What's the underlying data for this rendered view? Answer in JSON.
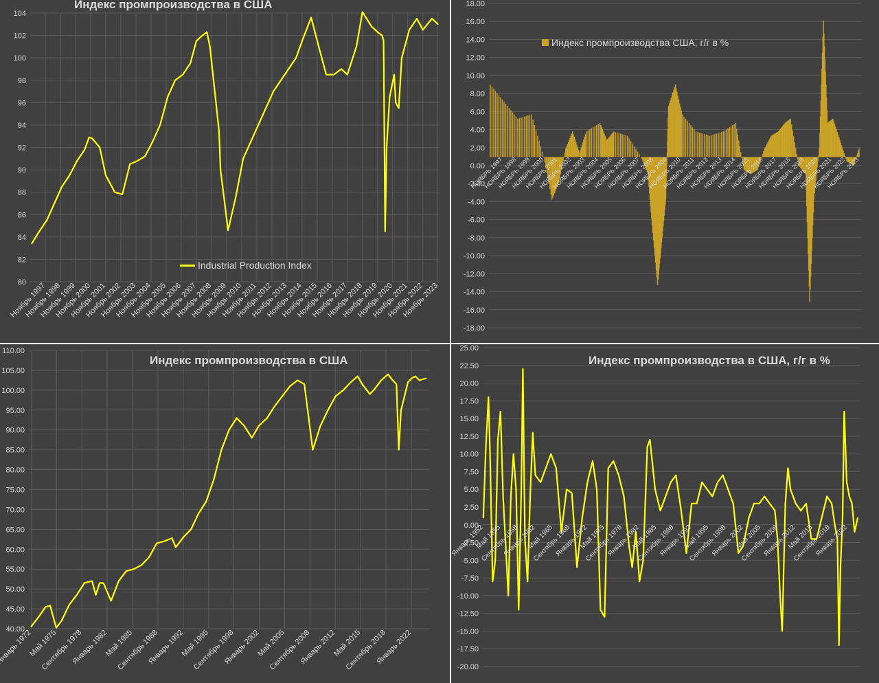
{
  "chart_data": [
    {
      "type": "line",
      "title": "Индекс промпроизводства в США",
      "series": [
        {
          "name": "Industrial Production Index",
          "x": [
            1997.0,
            1997.5,
            1998.0,
            1998.5,
            1999.0,
            1999.5,
            2000.0,
            2000.5,
            2000.8,
            2001.0,
            2001.5,
            2001.9,
            2002.5,
            2003.0,
            2003.5,
            2004.0,
            2004.5,
            2005.0,
            2005.5,
            2005.7,
            2006.0,
            2006.5,
            2007.0,
            2007.5,
            2007.9,
            2008.3,
            2008.6,
            2008.8,
            2009.4,
            2009.5,
            2010.0,
            2010.5,
            2011.0,
            2011.5,
            2012.0,
            2012.5,
            2013.0,
            2013.5,
            2014.0,
            2014.5,
            2014.9,
            2015.5,
            2016.0,
            2016.5,
            2017.0,
            2017.5,
            2017.9,
            2018.5,
            2018.9,
            2019.5,
            2019.9,
            2020.2,
            2020.3,
            2020.4,
            2020.5,
            2020.7,
            2021.0,
            2021.1,
            2021.3,
            2021.5,
            2022.0,
            2022.5,
            2022.9,
            2023.5,
            2023.9
          ],
          "values": [
            83.4,
            84.5,
            85.5,
            87,
            88.5,
            89.5,
            90.8,
            91.8,
            92.9,
            92.8,
            92,
            89.5,
            88,
            87.8,
            90.5,
            90.8,
            91.2,
            92.5,
            94,
            95,
            96.5,
            98,
            98.5,
            99.5,
            101.5,
            102,
            102.3,
            101,
            93.5,
            90,
            84.6,
            87.5,
            91,
            92.5,
            94,
            95.5,
            97,
            98,
            99,
            100,
            101.5,
            103.6,
            101,
            98.5,
            98.5,
            99,
            98.5,
            101,
            104.1,
            102.8,
            102.3,
            102,
            101.5,
            84.5,
            92,
            96.5,
            98.5,
            96,
            95.5,
            100,
            102.5,
            103.5,
            102.5,
            103.5,
            103
          ]
        }
      ],
      "ylim": [
        80,
        104
      ],
      "yticks": [
        "104",
        "102",
        "100",
        "98",
        "96",
        "94",
        "92",
        "90",
        "88",
        "86",
        "84",
        "82",
        "80"
      ],
      "xtick_labels": [
        "Ноябрь 1997",
        "Ноябрь 1998",
        "Ноябрь 1999",
        "Ноябрь 2000",
        "Ноябрь 2001",
        "Ноябрь 2002",
        "Ноябрь 2003",
        "Ноябрь 2004",
        "Ноябрь 2005",
        "Ноябрь 2006",
        "Ноябрь 2007",
        "Ноябрь 2008",
        "Ноябрь 2009",
        "Ноябрь 2010",
        "Ноябрь 2011",
        "Ноябрь 2012",
        "Ноябрь 2013",
        "Ноябрь 2014",
        "Ноябрь 2015",
        "Ноябрь 2016",
        "Ноябрь 2017",
        "Ноябрь 2018",
        "Ноябрь 2019",
        "Ноябрь 2020",
        "Ноябрь 2021",
        "Ноябрь 2022",
        "Ноябрь 2023"
      ],
      "legend_position": "bottom-center",
      "grid": true,
      "color": "#ffff00"
    },
    {
      "type": "bar",
      "title": "",
      "series": [
        {
          "name": "Индекс промпроизводства США, г/г в %",
          "x": [
            1997.0,
            1998.0,
            1999.0,
            2000.0,
            2000.9,
            2001.5,
            2002.0,
            2002.5,
            2003.0,
            2003.5,
            2004.0,
            2005.0,
            2005.5,
            2006.0,
            2007.0,
            2008.0,
            2008.5,
            2008.8,
            2009.2,
            2009.5,
            2009.8,
            2010.0,
            2010.5,
            2011.0,
            2012.0,
            2013.0,
            2014.0,
            2014.9,
            2015.5,
            2016.0,
            2016.5,
            2017.0,
            2017.5,
            2018.0,
            2018.5,
            2018.9,
            2019.5,
            2020.0,
            2020.3,
            2020.6,
            2021.0,
            2021.3,
            2021.6,
            2022.0,
            2022.5,
            2023.0,
            2023.5,
            2023.9
          ],
          "values": [
            8.5,
            6.5,
            4.5,
            5,
            0,
            -5,
            -3,
            1,
            3,
            0.5,
            3,
            4,
            2,
            3,
            2.5,
            0,
            -2,
            -8,
            -15,
            -10,
            -5,
            6,
            8.5,
            5,
            3,
            2.5,
            3,
            4,
            -1.5,
            -2,
            -1.5,
            1,
            2.5,
            3,
            4,
            4.5,
            -1,
            -2,
            -17,
            -5,
            1,
            16,
            4,
            4.5,
            2,
            -0.5,
            -1,
            1
          ]
        }
      ],
      "ylim": [
        -20,
        18
      ],
      "yticks": [
        "18.00",
        "16.00",
        "14.00",
        "12.00",
        "10.00",
        "8.00",
        "6.00",
        "4.00",
        "2.00",
        "0.00",
        "-2.00",
        "-4.00",
        "-6.00",
        "-8.00",
        "-10.00",
        "-12.00",
        "-14.00",
        "-16.00",
        "-18.00"
      ],
      "xtick_labels": [
        "НОЯБРЬ 1997",
        "НОЯБРЬ 1998",
        "НОЯБРЬ 1999",
        "НОЯБРЬ 2000",
        "НОЯБРЬ 2001",
        "НОЯБРЬ 2002",
        "НОЯБРЬ 2003",
        "НОЯБРЬ 2004",
        "НОЯБРЬ 2005",
        "НОЯБРЬ 2006",
        "НОЯБРЬ 2007",
        "НОЯБРЬ 2008",
        "НОЯБРЬ 2009",
        "НОЯБРЬ 2010",
        "НОЯБРЬ 2011",
        "НОЯБРЬ 2012",
        "НОЯБРЬ 2013",
        "НОЯБРЬ 2014",
        "НОЯБРЬ 2015",
        "НОЯБРЬ 2016",
        "НОЯБРЬ 2017",
        "НОЯБРЬ 2018",
        "НОЯБРЬ 2019",
        "НОЯБРЬ 2020",
        "НОЯБРЬ 2021",
        "НОЯБРЬ 2022",
        "НОЯБРЬ 2023"
      ],
      "legend_position": "top-left",
      "grid": true,
      "color": "#c9a227"
    },
    {
      "type": "line",
      "title": "Индекс промпроизводства в США",
      "series": [
        {
          "name": "",
          "x": [
            1972.0,
            1973.0,
            1973.9,
            1974.5,
            1975.3,
            1976.0,
            1977.0,
            1978.0,
            1979.0,
            1980.0,
            1980.5,
            1981.0,
            1981.5,
            1982.5,
            1983.5,
            1984.5,
            1985.5,
            1986.5,
            1987.5,
            1988.5,
            1989.5,
            1990.5,
            1991.0,
            1992.0,
            1993.0,
            1994.0,
            1995.0,
            1996.0,
            1997.0,
            1998.0,
            1999.0,
            2000.0,
            2001.0,
            2001.9,
            2003.0,
            2004.0,
            2005.0,
            2006.0,
            2007.0,
            2007.9,
            2009.0,
            2009.5,
            2010.0,
            2011.0,
            2012.0,
            2013.0,
            2014.0,
            2014.9,
            2015.5,
            2016.5,
            2017.0,
            2018.0,
            2018.9,
            2019.5,
            2020.0,
            2020.3,
            2020.6,
            2021.0,
            2021.5,
            2022.0,
            2022.5,
            2023.0,
            2023.9
          ],
          "values": [
            40.5,
            43,
            45.5,
            45.8,
            40.2,
            42,
            46,
            48.5,
            51.5,
            52,
            48.5,
            51.5,
            51.5,
            47,
            52,
            54.5,
            55,
            56,
            58,
            61.5,
            62,
            62.8,
            60.5,
            63,
            65,
            69,
            72,
            77.5,
            85,
            90,
            93,
            91,
            88,
            91,
            93,
            96,
            98.5,
            101,
            102.5,
            101.5,
            85,
            88,
            91,
            95,
            98.5,
            100,
            102,
            103.5,
            101.5,
            99,
            100,
            102.5,
            104,
            102.5,
            101.5,
            85,
            95,
            98,
            102,
            103,
            103.5,
            102.5,
            103
          ]
        }
      ],
      "ylim": [
        40,
        110
      ],
      "yticks": [
        "110.00",
        "105.00",
        "100.00",
        "95.00",
        "90.00",
        "85.00",
        "80.00",
        "75.00",
        "70.00",
        "65.00",
        "60.00",
        "55.00",
        "50.00",
        "45.00",
        "40.00"
      ],
      "xtick_labels": [
        "Январь 1972",
        "Май 1975",
        "Сентябрь 1978",
        "Январь 1982",
        "Май 1985",
        "Сентябрь 1988",
        "Январь 1992",
        "Май 1995",
        "Сентябрь 1998",
        "Январь 2002",
        "Май 2005",
        "Сентябрь 2008",
        "Январь 2012",
        "Май 2015",
        "Сентябрь 2018",
        "Январь 2022"
      ],
      "grid": true,
      "color": "#ffff00"
    },
    {
      "type": "line",
      "title": "Индекс промпроизводства в США, г/г в %",
      "series": [
        {
          "name": "",
          "x": [
            1952.0,
            1952.5,
            1953.0,
            1953.3,
            1953.8,
            1954.3,
            1954.8,
            1955.3,
            1955.8,
            1956.3,
            1956.8,
            1957.3,
            1957.8,
            1958.3,
            1958.8,
            1959.3,
            1959.6,
            1960.0,
            1960.5,
            1961.0,
            1961.5,
            1962.0,
            1963.0,
            1964.0,
            1965.0,
            1966.0,
            1967.0,
            1968.0,
            1969.0,
            1970.0,
            1971.0,
            1972.0,
            1973.0,
            1973.8,
            1974.5,
            1975.3,
            1976.0,
            1977.0,
            1978.0,
            1979.0,
            1980.0,
            1980.6,
            1981.3,
            1982.0,
            1982.7,
            1983.5,
            1984.0,
            1985.0,
            1986.0,
            1987.0,
            1988.0,
            1989.0,
            1990.0,
            1991.0,
            1992.0,
            1993.0,
            1994.0,
            1995.0,
            1996.0,
            1997.0,
            1998.0,
            1999.0,
            2000.0,
            2001.0,
            2001.9,
            2003.0,
            2004.0,
            2005.0,
            2006.0,
            2007.0,
            2008.0,
            2008.5,
            2009.0,
            2009.4,
            2010.0,
            2010.5,
            2011.0,
            2012.0,
            2013.0,
            2014.0,
            2015.0,
            2016.0,
            2017.0,
            2018.0,
            2018.9,
            2019.5,
            2020.0,
            2020.3,
            2020.6,
            2021.0,
            2021.3,
            2021.8,
            2022.3,
            2022.8,
            2023.3,
            2023.9
          ],
          "values": [
            1,
            11,
            18,
            10,
            -8,
            -5,
            12,
            16,
            4,
            -3,
            -10,
            4,
            10,
            5,
            -12,
            5,
            22,
            -2,
            -8,
            4,
            13,
            7,
            6,
            8,
            10,
            8,
            -1,
            5,
            4.5,
            -6,
            1,
            6,
            9,
            5,
            -12,
            -13,
            8,
            9,
            7,
            4,
            -3,
            -6,
            -1,
            -8,
            -5,
            11,
            12,
            5,
            2,
            4,
            6,
            7,
            2,
            -4,
            3,
            3,
            6,
            5,
            4,
            6,
            7,
            5,
            3,
            -4,
            -3,
            1,
            3,
            3,
            4,
            3,
            2,
            -2,
            -10,
            -15,
            3,
            8,
            5,
            3,
            2,
            3,
            -2,
            -2,
            1,
            4,
            3,
            0,
            -2,
            -17,
            -6,
            1,
            16,
            6,
            4,
            3,
            -1,
            1
          ]
        }
      ],
      "ylim": [
        -20,
        25
      ],
      "yticks": [
        "25.00",
        "22.50",
        "20.00",
        "17.50",
        "15.00",
        "12.50",
        "10.00",
        "7.50",
        "5.00",
        "2.50",
        "0.00",
        "-2.50",
        "-5.00",
        "-7.50",
        "-10.00",
        "-12.50",
        "-15.00",
        "-17.50",
        "-20.00"
      ],
      "xtick_labels": [
        "Январь 1952",
        "Май 1955",
        "Сентябрь 1958",
        "Январь 1962",
        "Май 1965",
        "Сентябрь 1968",
        "Январь 1972",
        "Май 1975",
        "Сентябрь 1978",
        "Январь 1982",
        "Май 1985",
        "Сентябрь 1988",
        "Январь 1992",
        "Май 1995",
        "Сентябрь 1998",
        "Январь 2002",
        "Май 2005",
        "Сентябрь 2008",
        "Январь 2012",
        "Май 2015",
        "Сентябрь 2018",
        "Январь 2022"
      ],
      "grid": true,
      "color": "#ffff00"
    }
  ]
}
